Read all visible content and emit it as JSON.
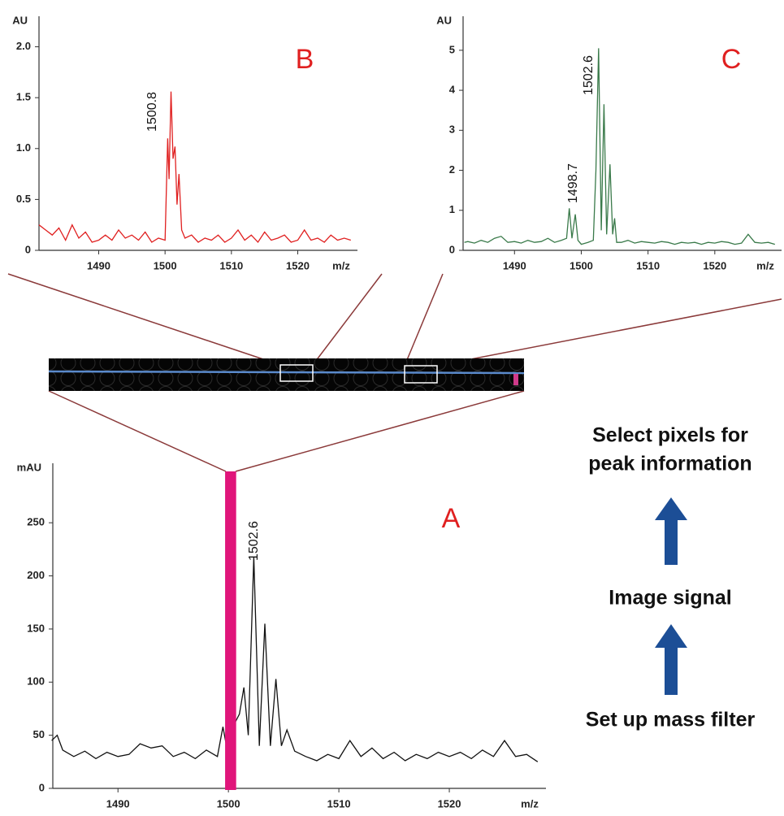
{
  "chart_data": [
    {
      "type": "line",
      "title": "A",
      "ylabel": "mAU",
      "xlabel": "m/z",
      "color": "#111111",
      "xlim": [
        1484.1,
        1528.75
      ],
      "ylim": [
        0,
        306
      ],
      "xticks": [
        1490,
        1500,
        1510,
        1520
      ],
      "yticks": [
        0,
        50,
        100,
        150,
        200,
        250
      ],
      "mass_filter": [
        1499.7,
        1500.7
      ],
      "annotations": [
        "1502.6"
      ],
      "x": [
        1484,
        1484.5,
        1485,
        1486,
        1487,
        1488,
        1489,
        1490,
        1491,
        1492,
        1493,
        1494,
        1495,
        1496,
        1497,
        1498,
        1499,
        1499.5,
        1500,
        1500.5,
        1501,
        1501.4,
        1501.8,
        1502.3,
        1502.8,
        1503.3,
        1503.8,
        1504.3,
        1504.8,
        1505.3,
        1506,
        1507,
        1508,
        1509,
        1510,
        1511,
        1512,
        1513,
        1514,
        1515,
        1516,
        1517,
        1518,
        1519,
        1520,
        1521,
        1522,
        1523,
        1524,
        1525,
        1526,
        1527,
        1528
      ],
      "values": [
        45,
        50,
        36,
        30,
        35,
        28,
        34,
        30,
        32,
        42,
        38,
        40,
        30,
        34,
        28,
        36,
        30,
        58,
        30,
        60,
        70,
        95,
        50,
        218,
        40,
        155,
        40,
        103,
        40,
        55,
        35,
        30,
        26,
        32,
        28,
        45,
        30,
        38,
        28,
        34,
        26,
        32,
        28,
        34,
        30,
        34,
        28,
        36,
        30,
        45,
        30,
        32,
        25
      ]
    },
    {
      "type": "line",
      "title": "B",
      "ylabel": "AU",
      "xlabel": "m/z",
      "color": "#e02020",
      "xlim": [
        1481,
        1529
      ],
      "ylim": [
        0,
        2.3
      ],
      "xticks": [
        1490,
        1500,
        1510,
        1520
      ],
      "yticks": [
        0,
        0.5,
        {
          "value": 1,
          "label": "1.0"
        },
        1.5,
        {
          "value": 2,
          "label": "2.0"
        }
      ],
      "annotations": [
        "1500.8"
      ],
      "x": [
        1481,
        1482,
        1483,
        1484,
        1485,
        1486,
        1487,
        1488,
        1489,
        1490,
        1491,
        1492,
        1493,
        1494,
        1495,
        1496,
        1497,
        1498,
        1499,
        1500,
        1500.4,
        1500.6,
        1500.9,
        1501.2,
        1501.5,
        1501.8,
        1502.1,
        1502.5,
        1503,
        1504,
        1505,
        1506,
        1507,
        1508,
        1509,
        1510,
        1511,
        1512,
        1513,
        1514,
        1515,
        1516,
        1517,
        1518,
        1519,
        1520,
        1521,
        1522,
        1523,
        1524,
        1525,
        1526,
        1527,
        1528
      ],
      "values": [
        0.25,
        0.2,
        0.15,
        0.22,
        0.1,
        0.25,
        0.12,
        0.18,
        0.08,
        0.1,
        0.15,
        0.1,
        0.2,
        0.12,
        0.15,
        0.1,
        0.18,
        0.08,
        0.12,
        0.1,
        1.1,
        0.7,
        1.56,
        0.9,
        1.02,
        0.45,
        0.75,
        0.2,
        0.12,
        0.15,
        0.08,
        0.12,
        0.1,
        0.15,
        0.08,
        0.12,
        0.2,
        0.1,
        0.15,
        0.08,
        0.18,
        0.1,
        0.12,
        0.15,
        0.08,
        0.1,
        0.2,
        0.1,
        0.12,
        0.08,
        0.15,
        0.1,
        0.12,
        0.1
      ]
    },
    {
      "type": "line",
      "title": "C",
      "ylabel": "AU",
      "xlabel": "m/z",
      "color": "#3a7a4a",
      "xlim": [
        1482.3,
        1530
      ],
      "ylim": [
        0,
        5.85
      ],
      "xticks": [
        1490,
        1500,
        1510,
        1520
      ],
      "yticks": [
        0,
        1,
        2,
        3,
        4,
        5
      ],
      "annotations": [
        "1502.6",
        "1498.7"
      ],
      "x": [
        1482.5,
        1483,
        1484,
        1485,
        1486,
        1487,
        1488,
        1489,
        1490,
        1491,
        1492,
        1493,
        1494,
        1495,
        1496,
        1497,
        1497.8,
        1498.2,
        1498.6,
        1499.1,
        1499.5,
        1500,
        1501,
        1501.8,
        1502.2,
        1502.6,
        1503,
        1503.4,
        1503.8,
        1504.3,
        1504.7,
        1505,
        1505.3,
        1506,
        1507,
        1508,
        1509,
        1510,
        1511,
        1512,
        1513,
        1514,
        1515,
        1516,
        1517,
        1518,
        1519,
        1520,
        1521,
        1522,
        1523,
        1524,
        1525,
        1526,
        1527,
        1528,
        1529
      ],
      "values": [
        0.2,
        0.22,
        0.18,
        0.25,
        0.2,
        0.3,
        0.35,
        0.2,
        0.22,
        0.18,
        0.25,
        0.2,
        0.22,
        0.3,
        0.2,
        0.25,
        0.3,
        1.05,
        0.3,
        0.9,
        0.25,
        0.15,
        0.2,
        0.25,
        2.0,
        5.05,
        0.5,
        3.65,
        0.4,
        2.15,
        0.4,
        0.8,
        0.2,
        0.2,
        0.25,
        0.18,
        0.22,
        0.2,
        0.18,
        0.22,
        0.2,
        0.15,
        0.2,
        0.18,
        0.2,
        0.15,
        0.2,
        0.18,
        0.22,
        0.2,
        0.15,
        0.18,
        0.4,
        0.2,
        0.18,
        0.2,
        0.15
      ]
    }
  ],
  "flow": {
    "steps": [
      [
        "Select pixels for",
        "peak information"
      ],
      [
        "Image signal"
      ],
      [
        "Set up mass filter"
      ]
    ]
  }
}
